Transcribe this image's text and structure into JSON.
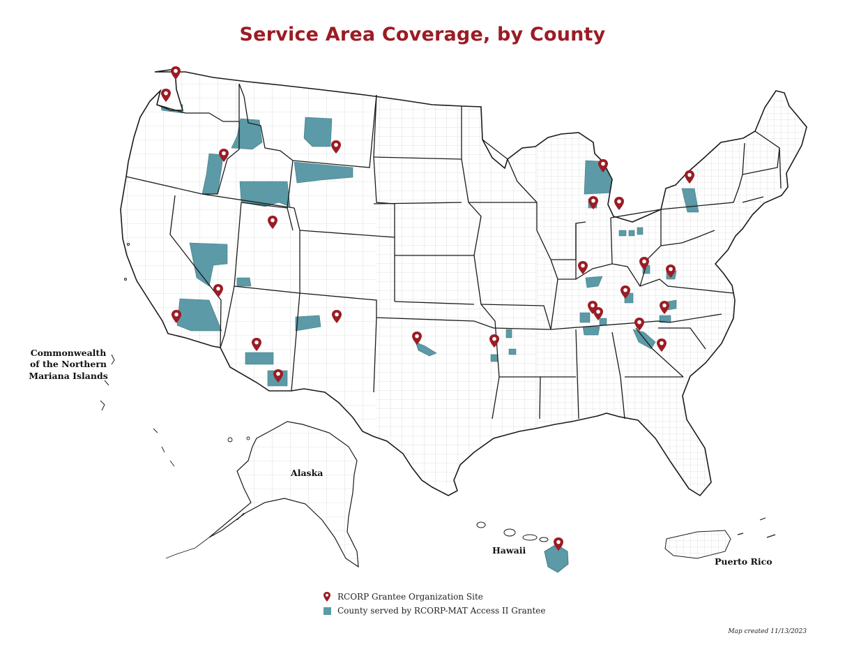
{
  "title": "Service Area Coverage, by County",
  "colors": {
    "title": "#9b1c24",
    "county_fill": "#5b9aa6",
    "pin": "#9b1c24",
    "border": "#222222",
    "county_line": "#bdbdbd"
  },
  "labels": {
    "cnmi": "Commonwealth of the Northern Mariana Islands",
    "alaska": "Alaska",
    "hawaii": "Hawaii",
    "puerto_rico": "Puerto Rico"
  },
  "legend": {
    "site_label": "RCORP Grantee Organization Site",
    "site_icon": "map-pin-icon",
    "county_label": "County served by RCORP-MAT Access II Grantee",
    "county_icon": "square-swatch"
  },
  "credit": "Map created 11/13/2023"
}
